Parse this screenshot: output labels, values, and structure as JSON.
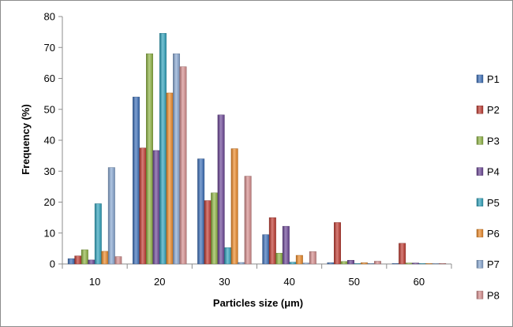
{
  "chart_data": {
    "type": "bar",
    "title": "",
    "xlabel": "Particles size (μm)",
    "ylabel": "Frequency (%)",
    "categories": [
      "10",
      "20",
      "30",
      "40",
      "50",
      "60"
    ],
    "ylim": [
      0,
      80
    ],
    "yticks": [
      0,
      10,
      20,
      30,
      40,
      50,
      60,
      70,
      80
    ],
    "grid": false,
    "legend_position": "right",
    "series": [
      {
        "name": "P1",
        "color": "#3a6fb9",
        "values": [
          1.7,
          54,
          34,
          9.5,
          0.4,
          0
        ]
      },
      {
        "name": "P2",
        "color": "#c0392f",
        "values": [
          2.6,
          37.5,
          20.5,
          15,
          13.4,
          6.7
        ]
      },
      {
        "name": "P3",
        "color": "#8fb542",
        "values": [
          4.6,
          68,
          23,
          3.5,
          0.8,
          0.3
        ]
      },
      {
        "name": "P4",
        "color": "#6b4597",
        "values": [
          1.3,
          36.7,
          48.2,
          12.2,
          1.2,
          0.3
        ]
      },
      {
        "name": "P5",
        "color": "#2ea3bd",
        "values": [
          19.5,
          74.6,
          5.3,
          0.6,
          0,
          0
        ]
      },
      {
        "name": "P6",
        "color": "#ee8a27",
        "values": [
          4.1,
          55.3,
          37.3,
          2.8,
          0.4,
          0
        ]
      },
      {
        "name": "P7",
        "color": "#87a7d2",
        "values": [
          31.2,
          68,
          0.5,
          0.3,
          0.2,
          0
        ]
      },
      {
        "name": "P8",
        "color": "#d78d8d",
        "values": [
          2.4,
          63.8,
          28.4,
          4,
          0.9,
          0.2
        ]
      }
    ]
  }
}
